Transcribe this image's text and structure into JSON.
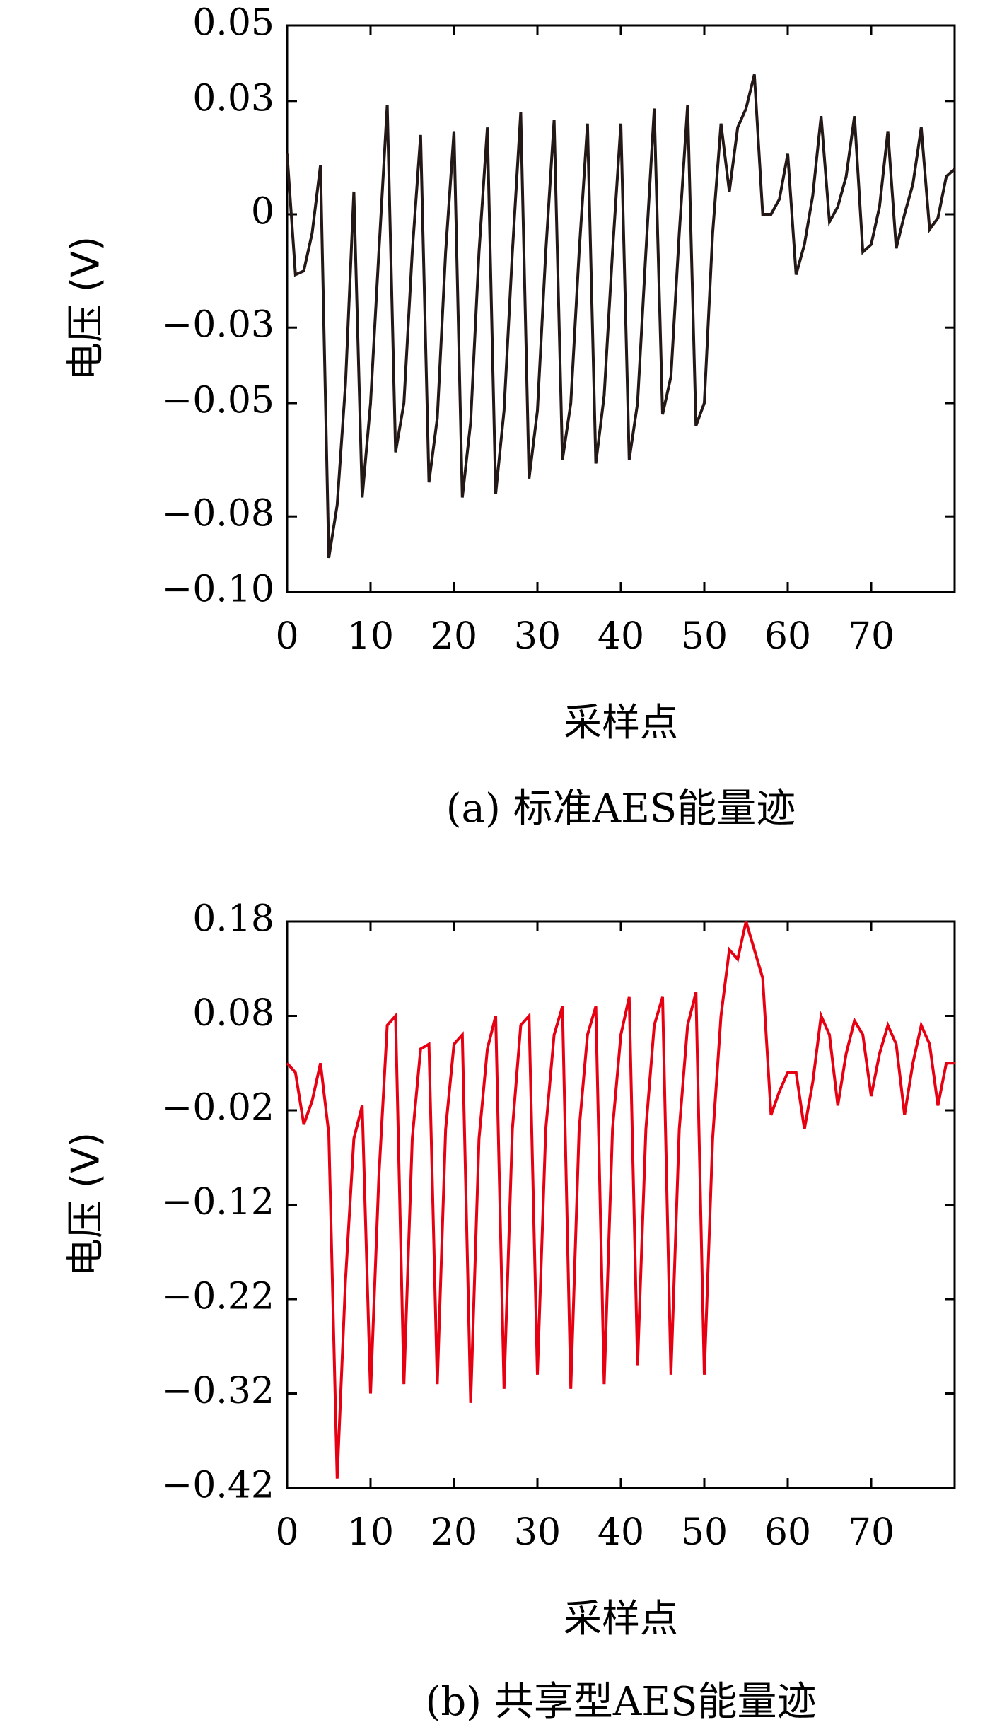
{
  "chart_data": [
    {
      "type": "line",
      "caption": "(a) 标准AES能量迹",
      "xlabel": "采样点",
      "ylabel": "电压 (V)",
      "xlim": [
        0,
        80
      ],
      "ylim": [
        -0.1,
        0.05
      ],
      "xticks": [
        0,
        10,
        20,
        30,
        40,
        50,
        60,
        70
      ],
      "xtick_labels": [
        "0",
        "10",
        "20",
        "30",
        "40",
        "50",
        "60",
        "70"
      ],
      "yticks": [
        0.05,
        0.03,
        0.0,
        -0.03,
        -0.05,
        -0.08,
        -0.1
      ],
      "ytick_labels": [
        "0.05",
        "0.03",
        "0",
        "−0.03",
        "−0.05",
        "−0.08",
        "−0.10"
      ],
      "grid": false,
      "color": "#231815",
      "series": [
        {
          "x": [
            0,
            1,
            2,
            3,
            4,
            5,
            6,
            7,
            8,
            9,
            10,
            11,
            12,
            13,
            14,
            15,
            16,
            17,
            18,
            19,
            20,
            21,
            22,
            23,
            24,
            25,
            26,
            27,
            28,
            29,
            30,
            31,
            32,
            33,
            34,
            35,
            36,
            37,
            38,
            39,
            40,
            41,
            42,
            43,
            44,
            45,
            46,
            47,
            48,
            49,
            50,
            51,
            52,
            53,
            54,
            55,
            56,
            57,
            58,
            59,
            60,
            61,
            62,
            63,
            64,
            65,
            66,
            67,
            68,
            69,
            70,
            71,
            72,
            73,
            74,
            75,
            76,
            77,
            78,
            79,
            80
          ],
          "values": [
            0.016,
            -0.016,
            -0.015,
            -0.005,
            0.013,
            -0.091,
            -0.077,
            -0.045,
            0.006,
            -0.075,
            -0.05,
            -0.01,
            0.029,
            -0.063,
            -0.05,
            -0.01,
            0.021,
            -0.071,
            -0.054,
            -0.01,
            0.022,
            -0.075,
            -0.055,
            -0.01,
            0.023,
            -0.074,
            -0.052,
            -0.01,
            0.027,
            -0.07,
            -0.052,
            -0.01,
            0.025,
            -0.065,
            -0.05,
            -0.01,
            0.024,
            -0.066,
            -0.048,
            -0.01,
            0.024,
            -0.065,
            -0.05,
            -0.01,
            0.028,
            -0.053,
            -0.043,
            -0.005,
            0.029,
            -0.056,
            -0.05,
            -0.005,
            0.024,
            0.006,
            0.023,
            0.028,
            0.037,
            0.0,
            0.0,
            0.004,
            0.016,
            -0.016,
            -0.008,
            0.005,
            0.026,
            -0.002,
            0.002,
            0.01,
            0.026,
            -0.01,
            -0.008,
            0.002,
            0.022,
            -0.009,
            0.0,
            0.008,
            0.023,
            -0.004,
            -0.001,
            0.01,
            0.012
          ]
        }
      ]
    },
    {
      "type": "line",
      "caption": "(b) 共享型AES能量迹",
      "xlabel": "采样点",
      "ylabel": "电压 (V)",
      "xlim": [
        0,
        80
      ],
      "ylim": [
        -0.42,
        0.18
      ],
      "xticks": [
        0,
        10,
        20,
        30,
        40,
        50,
        60,
        70
      ],
      "xtick_labels": [
        "0",
        "10",
        "20",
        "30",
        "40",
        "50",
        "60",
        "70"
      ],
      "yticks": [
        0.18,
        0.08,
        -0.02,
        -0.12,
        -0.22,
        -0.32,
        -0.42
      ],
      "ytick_labels": [
        "0.18",
        "0.08",
        "−0.02",
        "−0.12",
        "−0.22",
        "−0.32",
        "−0.42"
      ],
      "grid": false,
      "color": "#e60012",
      "series": [
        {
          "x": [
            0,
            1,
            2,
            3,
            4,
            5,
            6,
            7,
            8,
            9,
            10,
            11,
            12,
            13,
            14,
            15,
            16,
            17,
            18,
            19,
            20,
            21,
            22,
            23,
            24,
            25,
            26,
            27,
            28,
            29,
            30,
            31,
            32,
            33,
            34,
            35,
            36,
            37,
            38,
            39,
            40,
            41,
            42,
            43,
            44,
            45,
            46,
            47,
            48,
            49,
            50,
            51,
            52,
            53,
            54,
            55,
            56,
            57,
            58,
            59,
            60,
            61,
            62,
            63,
            64,
            65,
            66,
            67,
            68,
            69,
            70,
            71,
            72,
            73,
            74,
            75,
            76,
            77,
            78,
            79,
            80
          ],
          "values": [
            0.03,
            0.02,
            -0.035,
            -0.01,
            0.03,
            -0.045,
            -0.41,
            -0.2,
            -0.05,
            -0.015,
            -0.32,
            -0.09,
            0.07,
            0.08,
            -0.31,
            -0.05,
            0.045,
            0.05,
            -0.31,
            -0.04,
            0.05,
            0.06,
            -0.33,
            -0.05,
            0.045,
            0.08,
            -0.315,
            -0.04,
            0.07,
            0.08,
            -0.3,
            -0.04,
            0.06,
            0.09,
            -0.315,
            -0.04,
            0.06,
            0.09,
            -0.31,
            -0.04,
            0.06,
            0.1,
            -0.29,
            -0.04,
            0.07,
            0.1,
            -0.3,
            -0.04,
            0.07,
            0.105,
            -0.3,
            -0.05,
            0.08,
            0.15,
            0.14,
            0.18,
            0.15,
            0.12,
            -0.025,
            0.0,
            0.02,
            0.02,
            -0.04,
            0.01,
            0.08,
            0.06,
            -0.015,
            0.04,
            0.075,
            0.06,
            -0.005,
            0.04,
            0.07,
            0.05,
            -0.025,
            0.03,
            0.07,
            0.05,
            -0.015,
            0.03,
            0.03
          ]
        }
      ]
    }
  ]
}
